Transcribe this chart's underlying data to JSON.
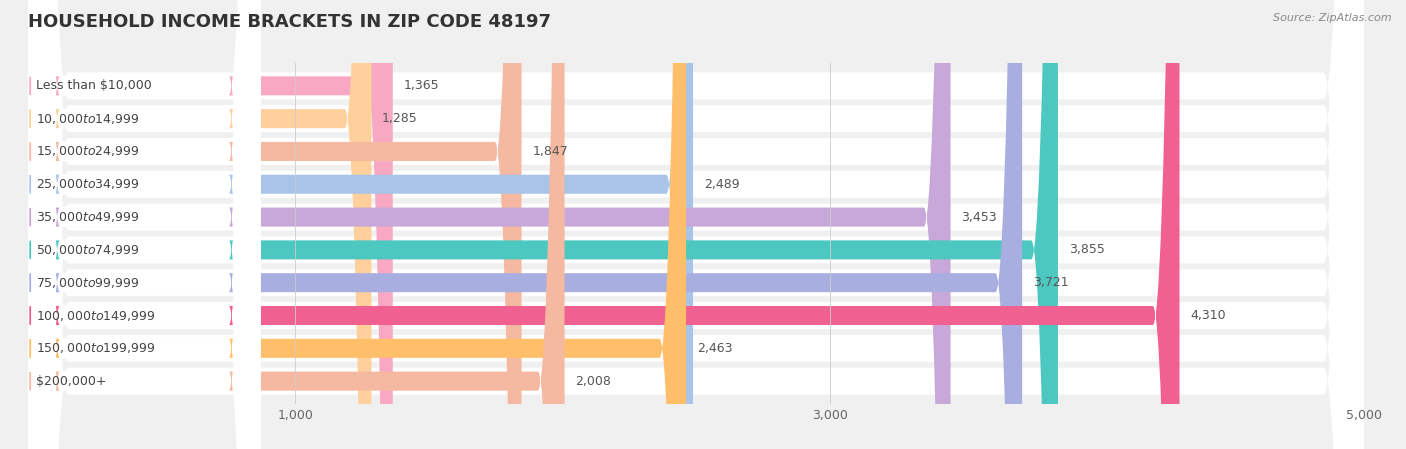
{
  "title": "HOUSEHOLD INCOME BRACKETS IN ZIP CODE 48197",
  "source": "Source: ZipAtlas.com",
  "categories": [
    "Less than $10,000",
    "$10,000 to $14,999",
    "$15,000 to $24,999",
    "$25,000 to $34,999",
    "$35,000 to $49,999",
    "$50,000 to $74,999",
    "$75,000 to $99,999",
    "$100,000 to $149,999",
    "$150,000 to $199,999",
    "$200,000+"
  ],
  "values": [
    1365,
    1285,
    1847,
    2489,
    3453,
    3855,
    3721,
    4310,
    2463,
    2008
  ],
  "bar_colors": [
    "#f9a8c4",
    "#ffd09b",
    "#f5b8a0",
    "#a8c4e8",
    "#c8a8d8",
    "#4dc8c0",
    "#a8aee0",
    "#f06090",
    "#ffbe6a",
    "#f5b8a0"
  ],
  "background_color": "#f0f0f0",
  "row_bg_color": "#ffffff",
  "xlim_max": 5000,
  "xticks": [
    1000,
    3000,
    5000
  ],
  "xtick_labels": [
    "1,000",
    "3,000",
    "5,000"
  ],
  "title_fontsize": 13,
  "label_fontsize": 9,
  "value_fontsize": 9,
  "source_fontsize": 8
}
